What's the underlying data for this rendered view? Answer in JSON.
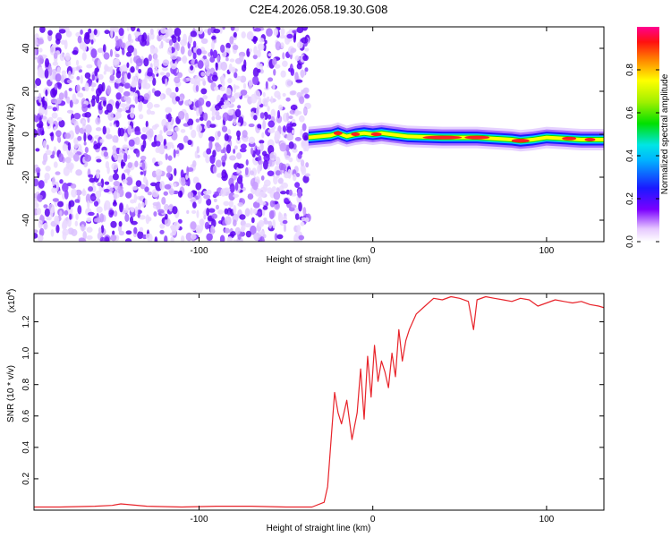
{
  "figure": {
    "title": "C2E4.2026.058.19.30.G08"
  },
  "chart_data": [
    {
      "type": "heatmap",
      "xlabel": "Height of straight line (km)",
      "ylabel": "Frequency (Hz)",
      "xlim": [
        -195,
        133
      ],
      "ylim": [
        -50,
        50
      ],
      "xticks": [
        "-100",
        "0",
        "100"
      ],
      "xtick_values": [
        -100,
        0,
        100
      ],
      "yticks": [
        "-40",
        "-20",
        "0",
        "20",
        "40"
      ],
      "ytick_values": [
        -40,
        -20,
        0,
        20,
        40
      ],
      "noise_region_x": [
        -195,
        -37
      ],
      "signal_region_x": [
        -37,
        133
      ],
      "signal_track": {
        "x": [
          -37,
          -30,
          -24,
          -20,
          -15,
          -10,
          -5,
          0,
          5,
          10,
          20,
          40,
          60,
          80,
          85,
          92,
          100,
          110,
          120,
          133
        ],
        "freq": [
          -1.5,
          -1,
          -0.5,
          0.5,
          -1,
          0,
          0.5,
          0,
          0.5,
          0,
          -1,
          -1.5,
          -1.5,
          -2.5,
          -3,
          -2.5,
          -1.5,
          -2,
          -2.5,
          -2.5
        ]
      },
      "colorbar": {
        "label": "Normalized spectral amplitude",
        "ticks": [
          "0.0",
          "0.2",
          "0.4",
          "0.6",
          "0.8"
        ],
        "tick_values": [
          0.0,
          0.2,
          0.4,
          0.6,
          0.8
        ],
        "range": [
          0,
          1
        ]
      }
    },
    {
      "type": "line",
      "xlabel": "Height of straight line (km)",
      "ylabel": "SNR (10 * v/v)",
      "yscale_label": "(x10",
      "yscale_exp": "4",
      "xlim": [
        -195,
        133
      ],
      "ylim": [
        0,
        1.38
      ],
      "xticks": [
        "-100",
        "0",
        "100"
      ],
      "xtick_values": [
        -100,
        0,
        100
      ],
      "yticks": [
        "0.2",
        "0.4",
        "0.6",
        "0.8",
        "1.0",
        "1.2"
      ],
      "ytick_values": [
        0.2,
        0.4,
        0.6,
        0.8,
        1.0,
        1.2
      ],
      "series": [
        {
          "color": "#e8232a",
          "x": [
            -195,
            -180,
            -160,
            -150,
            -145,
            -140,
            -130,
            -110,
            -90,
            -70,
            -50,
            -35,
            -28,
            -26,
            -24,
            -22,
            -20,
            -18,
            -15,
            -12,
            -9,
            -7,
            -5,
            -3,
            -1,
            1,
            3,
            5,
            7,
            9,
            11,
            13,
            15,
            17,
            19,
            21,
            25,
            30,
            35,
            40,
            45,
            50,
            55,
            58,
            60,
            65,
            70,
            75,
            80,
            85,
            90,
            95,
            100,
            105,
            110,
            115,
            120,
            125,
            130,
            133
          ],
          "values": [
            0.02,
            0.02,
            0.025,
            0.03,
            0.04,
            0.035,
            0.025,
            0.02,
            0.025,
            0.025,
            0.02,
            0.02,
            0.05,
            0.15,
            0.45,
            0.75,
            0.62,
            0.55,
            0.7,
            0.45,
            0.62,
            0.9,
            0.58,
            0.98,
            0.72,
            1.05,
            0.82,
            0.95,
            0.88,
            0.78,
            1.0,
            0.85,
            1.15,
            0.95,
            1.08,
            1.15,
            1.25,
            1.3,
            1.35,
            1.34,
            1.36,
            1.35,
            1.33,
            1.15,
            1.34,
            1.36,
            1.35,
            1.34,
            1.33,
            1.35,
            1.34,
            1.3,
            1.32,
            1.34,
            1.33,
            1.32,
            1.33,
            1.31,
            1.3,
            1.29
          ]
        }
      ]
    }
  ]
}
